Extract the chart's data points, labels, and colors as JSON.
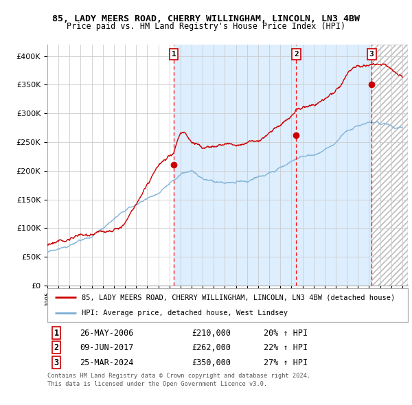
{
  "title_line1": "85, LADY MEERS ROAD, CHERRY WILLINGHAM, LINCOLN, LN3 4BW",
  "title_line2": "Price paid vs. HM Land Registry's House Price Index (HPI)",
  "xlim_start": 1995.0,
  "xlim_end": 2027.5,
  "ylim": [
    0,
    420000
  ],
  "yticks": [
    0,
    50000,
    100000,
    150000,
    200000,
    250000,
    300000,
    350000,
    400000
  ],
  "ytick_labels": [
    "£0",
    "£50K",
    "£100K",
    "£150K",
    "£200K",
    "£250K",
    "£300K",
    "£350K",
    "£400K"
  ],
  "sale_dates": [
    2006.39,
    2017.44,
    2024.23
  ],
  "sale_prices": [
    210000,
    262000,
    350000
  ],
  "sale_labels": [
    "1",
    "2",
    "3"
  ],
  "sale_hpi_pct": [
    "20%",
    "22%",
    "27%"
  ],
  "sale_date_strs": [
    "26-MAY-2006",
    "09-JUN-2017",
    "25-MAR-2024"
  ],
  "sale_price_strs": [
    "£210,000",
    "£262,000",
    "£350,000"
  ],
  "red_line_color": "#cc0000",
  "blue_line_color": "#7aafd4",
  "bg_shaded_color": "#ddeeff",
  "grid_color": "#cccccc",
  "legend_label_red": "85, LADY MEERS ROAD, CHERRY WILLINGHAM, LINCOLN, LN3 4BW (detached house)",
  "legend_label_blue": "HPI: Average price, detached house, West Lindsey",
  "footer_line1": "Contains HM Land Registry data © Crown copyright and database right 2024.",
  "footer_line2": "This data is licensed under the Open Government Licence v3.0.",
  "xtick_years": [
    1995,
    1996,
    1997,
    1998,
    1999,
    2000,
    2001,
    2002,
    2003,
    2004,
    2005,
    2006,
    2007,
    2008,
    2009,
    2010,
    2011,
    2012,
    2013,
    2014,
    2015,
    2016,
    2017,
    2018,
    2019,
    2020,
    2021,
    2022,
    2023,
    2024,
    2025,
    2026,
    2027
  ],
  "hpi_keypoints_x": [
    1995,
    1997,
    1999,
    2001,
    2003,
    2005,
    2007,
    2008,
    2009,
    2010,
    2011,
    2012,
    2013,
    2014,
    2015,
    2016,
    2017,
    2018,
    2019,
    2020,
    2021,
    2022,
    2023,
    2024,
    2025,
    2027
  ],
  "hpi_keypoints_y": [
    58000,
    68000,
    80000,
    110000,
    140000,
    162000,
    192000,
    196000,
    183000,
    175000,
    172000,
    170000,
    172000,
    178000,
    188000,
    198000,
    210000,
    218000,
    222000,
    228000,
    242000,
    262000,
    270000,
    278000,
    275000,
    268000
  ],
  "red_keypoints_x": [
    1995,
    1996,
    1997,
    1998,
    1999,
    2000,
    2001,
    2002,
    2003,
    2004,
    2005,
    2006.0,
    2006.39,
    2007.0,
    2007.5,
    2008,
    2009,
    2010,
    2011,
    2012,
    2013,
    2014,
    2015,
    2016,
    2017.0,
    2017.44,
    2018,
    2019,
    2020,
    2021,
    2022,
    2023,
    2024.0,
    2024.23,
    2025,
    2026,
    2027
  ],
  "red_keypoints_y": [
    72000,
    75000,
    78000,
    80000,
    82000,
    85000,
    88000,
    100000,
    125000,
    158000,
    188000,
    205000,
    210000,
    242000,
    240000,
    225000,
    215000,
    212000,
    208000,
    207000,
    210000,
    215000,
    225000,
    238000,
    255000,
    262000,
    268000,
    272000,
    280000,
    298000,
    330000,
    350000,
    352000,
    350000,
    348000,
    342000,
    330000
  ]
}
